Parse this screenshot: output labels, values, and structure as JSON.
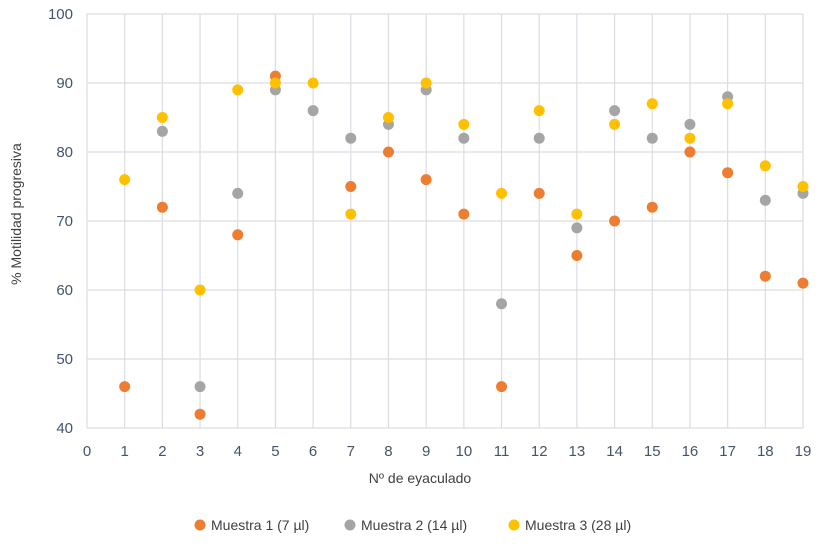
{
  "chart_data": {
    "type": "scatter",
    "title": "",
    "xlabel": "Nº de eyaculado",
    "ylabel": "% Motilidad progresiva",
    "xlim": [
      0,
      19
    ],
    "ylim": [
      40,
      100
    ],
    "xticks": [
      0,
      1,
      2,
      3,
      4,
      5,
      6,
      7,
      8,
      9,
      10,
      11,
      12,
      13,
      14,
      15,
      16,
      17,
      18,
      19
    ],
    "yticks": [
      40,
      50,
      60,
      70,
      80,
      90,
      100
    ],
    "grid": true,
    "legend_position": "bottom",
    "series": [
      {
        "name": "Muestra 1 (7 µl)",
        "color": "#ed7d31",
        "x": [
          1,
          2,
          3,
          4,
          5,
          7,
          8,
          9,
          10,
          11,
          12,
          13,
          14,
          15,
          16,
          17,
          18,
          19
        ],
        "y": [
          46,
          72,
          42,
          68,
          91,
          75,
          80,
          76,
          71,
          46,
          74,
          65,
          70,
          72,
          80,
          77,
          62,
          61
        ]
      },
      {
        "name": "Muestra 2 (14 µl)",
        "color": "#a5a5a5",
        "x": [
          2,
          3,
          4,
          5,
          6,
          7,
          8,
          9,
          10,
          11,
          12,
          13,
          14,
          15,
          16,
          17,
          18,
          19
        ],
        "y": [
          83,
          46,
          74,
          89,
          86,
          82,
          84,
          89,
          82,
          58,
          82,
          69,
          86,
          82,
          84,
          88,
          73,
          74
        ]
      },
      {
        "name": "Muestra 3 (28 µl)",
        "color": "#ffc000",
        "x": [
          1,
          2,
          3,
          4,
          5,
          6,
          7,
          8,
          9,
          10,
          11,
          12,
          13,
          14,
          15,
          16,
          17,
          18,
          19
        ],
        "y": [
          76,
          85,
          60,
          89,
          90,
          90,
          71,
          85,
          90,
          84,
          74,
          86,
          71,
          84,
          87,
          82,
          87,
          78,
          75
        ]
      }
    ]
  }
}
